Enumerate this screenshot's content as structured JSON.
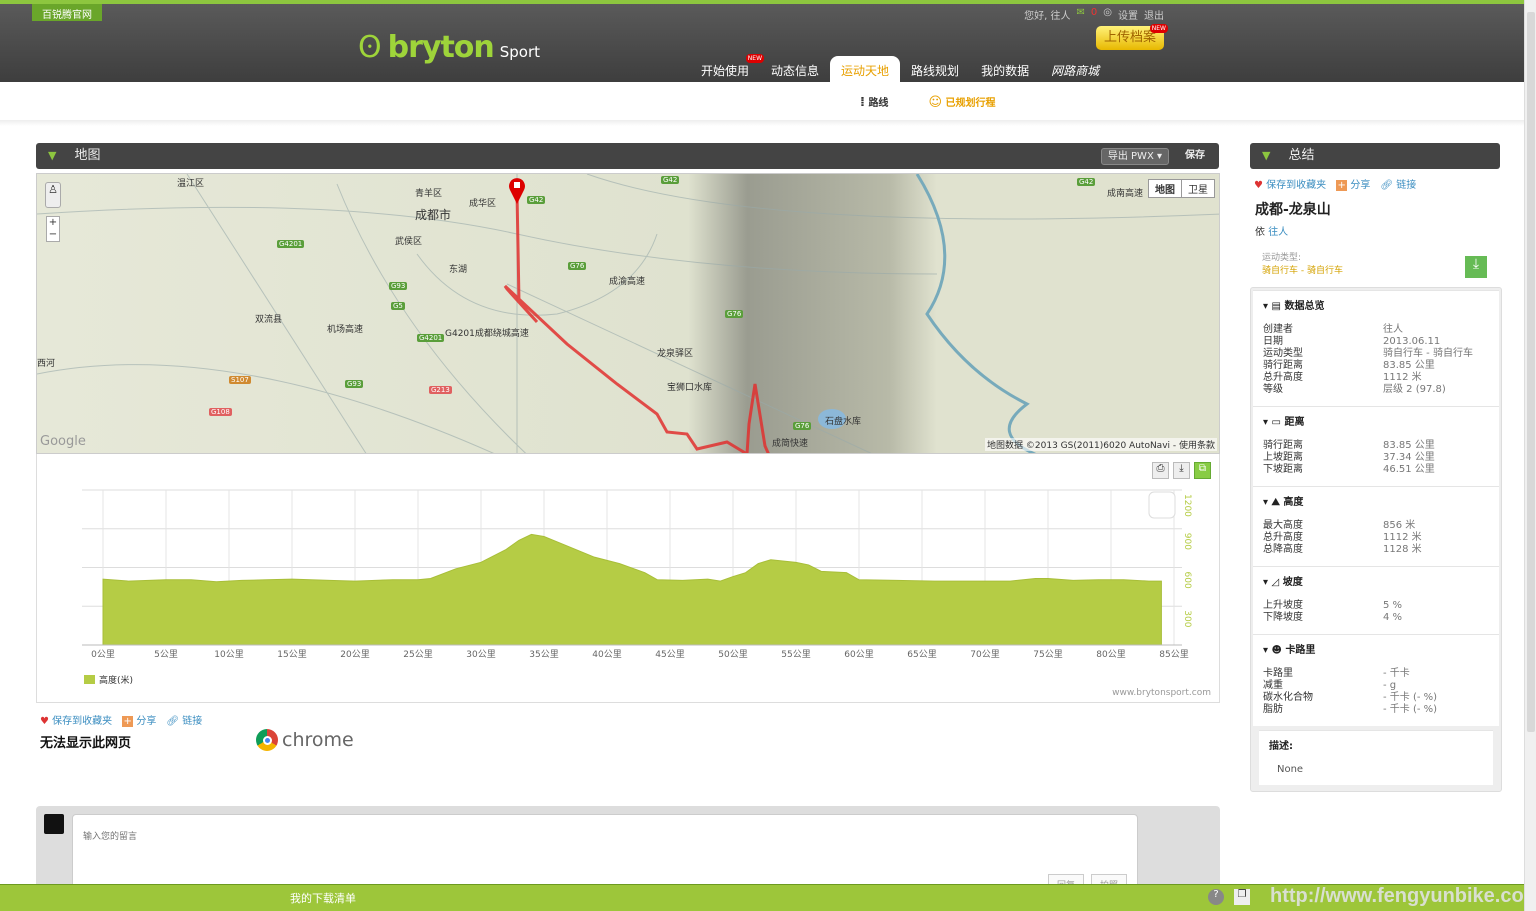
{
  "header": {
    "offsite_link": "百锐腾官网",
    "greeting": "您好, 往人",
    "mail_count": "0",
    "settings": "设置",
    "logout": "退出",
    "logo_text": "bryton",
    "logo_sport": "Sport",
    "upload": "上传档案",
    "new_badge": "NEW",
    "nav": [
      {
        "label": "开始使用",
        "new": true
      },
      {
        "label": "动态信息"
      },
      {
        "label": "运动天地",
        "active": true
      },
      {
        "label": "路线规划"
      },
      {
        "label": "我的数据"
      },
      {
        "label": "网路商城"
      }
    ],
    "subnav": [
      {
        "label": "路线"
      },
      {
        "label": "已规划行程",
        "active": true
      }
    ]
  },
  "map_panel": {
    "title": "地图",
    "export": "导出 PWX",
    "save": "保存",
    "map_type": "地图",
    "satellite": "卫星",
    "copyright": "地图数据 ©2013 GS(2011)6020 AutoNavi - 使用条款",
    "google": "Google",
    "labels": [
      "温江区",
      "青羊区",
      "成华区",
      "成都市",
      "武侯区",
      "东湖",
      "双流县",
      "机场高速",
      "G4201成都绕城高速",
      "成渝高速",
      "龙泉驿区",
      "宝狮口水库",
      "石盘水库",
      "成简快速",
      "西河",
      "成南高速"
    ],
    "shields": [
      "G42",
      "G42",
      "G4201",
      "G76",
      "G93",
      "G5",
      "G4201",
      "G93",
      "G76",
      "G76",
      "G42",
      "S107",
      "G108",
      "G213"
    ]
  },
  "chart_data": {
    "type": "area",
    "xlabel_unit": "公里",
    "series": [
      {
        "name": "高度(米)",
        "color": "#b5cc45",
        "x": [
          0,
          2,
          5,
          7,
          9,
          11,
          13,
          15,
          18,
          20,
          23,
          25,
          26,
          28,
          30,
          32,
          33,
          34,
          35,
          37,
          39,
          41,
          43,
          44,
          46,
          48,
          49,
          50,
          51,
          52,
          53,
          55,
          56,
          57,
          59,
          60,
          63,
          66,
          70,
          72,
          74,
          75,
          77,
          79,
          81,
          83,
          84
        ],
        "y": [
          510,
          495,
          505,
          505,
          490,
          500,
          505,
          510,
          500,
          495,
          505,
          505,
          515,
          590,
          640,
          740,
          810,
          856,
          840,
          760,
          680,
          630,
          560,
          505,
          500,
          510,
          495,
          530,
          560,
          630,
          660,
          640,
          620,
          570,
          560,
          505,
          500,
          495,
          495,
          495,
          515,
          515,
          500,
          505,
          505,
          495,
          495
        ]
      }
    ],
    "x_ticks": [
      "0公里",
      "5公里",
      "10公里",
      "15公里",
      "20公里",
      "25公里",
      "30公里",
      "35公里",
      "40公里",
      "45公里",
      "50公里",
      "55公里",
      "60公里",
      "65公里",
      "70公里",
      "75公里",
      "80公里",
      "85公里"
    ],
    "y_ticks": [
      "300",
      "600",
      "900",
      "1200"
    ],
    "xlim": [
      0,
      85
    ],
    "ylim": [
      0,
      1200
    ],
    "grid": true,
    "legend": "bottom-left",
    "credit": "www.brytonsport.com"
  },
  "under_map": {
    "fav": "保存到收藏夹",
    "share": "分享",
    "link": "链接",
    "error": "无法显示此网页",
    "chrome": "chrome"
  },
  "comment": {
    "placeholder": "输入您的留言",
    "btn1": "回复",
    "btn2": "拍照"
  },
  "bottom": {
    "downloads": "我的下载清单",
    "watermark": "http://www.fengyunbike.com"
  },
  "summary": {
    "title": "总结",
    "fav": "保存到收藏夹",
    "share": "分享",
    "link": "链接",
    "route_name": "成都-龙泉山",
    "by": "依",
    "author": "往人",
    "sport_label": "运动类型:",
    "sport_value": "骑自行车 - 骑自行车",
    "sections": [
      {
        "title": "数据总览",
        "rows": [
          [
            "创建者",
            "往人"
          ],
          [
            "日期",
            "2013.06.11"
          ],
          [
            "运动类型",
            "骑自行车 - 骑自行车"
          ],
          [
            "骑行距离",
            "83.85 公里"
          ],
          [
            "总升高度",
            "1112 米"
          ],
          [
            "等级",
            "层级 2 (97.8)"
          ]
        ]
      },
      {
        "title": "距离",
        "rows": [
          [
            "骑行距离",
            "83.85 公里"
          ],
          [
            "上坡距离",
            "37.34 公里"
          ],
          [
            "下坡距离",
            "46.51 公里"
          ]
        ]
      },
      {
        "title": "高度",
        "rows": [
          [
            "最大高度",
            "856 米"
          ],
          [
            "总升高度",
            "1112 米"
          ],
          [
            "总降高度",
            "1128 米"
          ]
        ]
      },
      {
        "title": "坡度",
        "rows": [
          [
            "上升坡度",
            "5 %"
          ],
          [
            "下降坡度",
            "4 %"
          ]
        ]
      },
      {
        "title": "卡路里",
        "rows": [
          [
            "卡路里",
            "- 千卡"
          ],
          [
            "减重",
            "- g"
          ],
          [
            "碳水化合物",
            "- 千卡 (- %)"
          ],
          [
            "脂肪",
            "- 千卡 (- %)"
          ]
        ]
      }
    ],
    "desc_label": "描述:",
    "desc": "None"
  }
}
